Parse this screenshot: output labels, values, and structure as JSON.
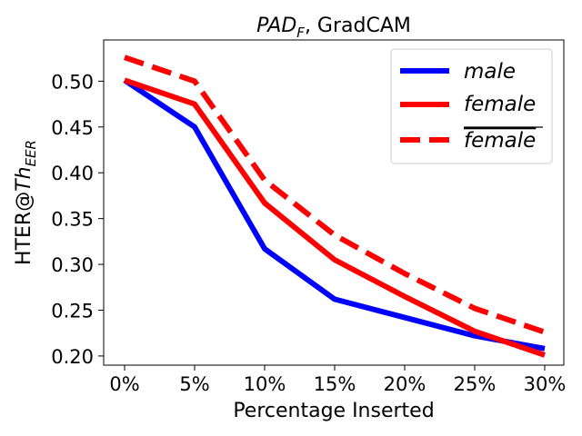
{
  "chart_data": {
    "type": "line",
    "title_italic": "PAD",
    "title_subscript": "F",
    "title_rest": ", GradCAM",
    "xlabel": "Percentage Inserted",
    "ylabel_prefix": "HTER@",
    "ylabel_italic": "Th",
    "ylabel_subscript": "EER",
    "categories": [
      "0%",
      "5%",
      "10%",
      "15%",
      "20%",
      "25%",
      "30%"
    ],
    "ylim": [
      0.19,
      0.545
    ],
    "yticks": [
      0.2,
      0.25,
      0.3,
      0.35,
      0.4,
      0.45,
      0.5
    ],
    "ytick_labels": [
      "0.20",
      "0.25",
      "0.30",
      "0.35",
      "0.40",
      "0.45",
      "0.50"
    ],
    "legend_position": "top-right",
    "series": [
      {
        "name": "male",
        "overline": false,
        "color": "#0000ff",
        "style": "solid",
        "values": [
          0.501,
          0.45,
          0.317,
          0.262,
          0.242,
          0.222,
          0.208
        ]
      },
      {
        "name": "female",
        "overline": false,
        "color": "#ff0000",
        "style": "solid",
        "values": [
          0.501,
          0.475,
          0.367,
          0.305,
          0.265,
          0.227,
          0.201
        ]
      },
      {
        "name": "female",
        "overline": true,
        "color": "#ff0000",
        "style": "dashed",
        "values": [
          0.526,
          0.5,
          0.392,
          0.332,
          0.29,
          0.252,
          0.226
        ]
      }
    ]
  }
}
